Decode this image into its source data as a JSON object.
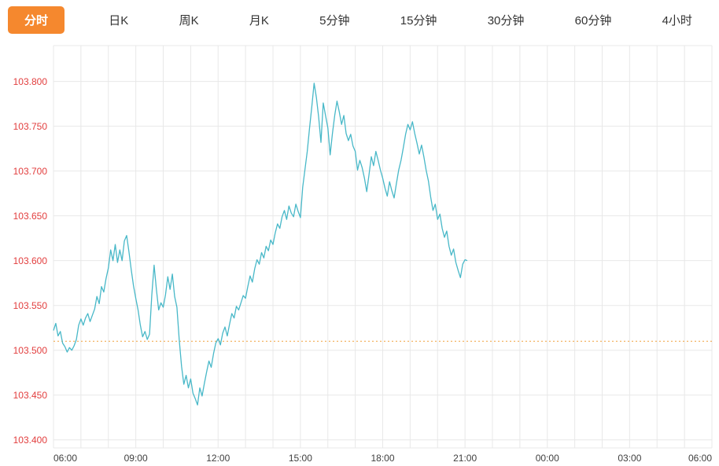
{
  "tabs": {
    "items": [
      {
        "label": "分时",
        "active": true
      },
      {
        "label": "日K",
        "active": false
      },
      {
        "label": "周K",
        "active": false
      },
      {
        "label": "月K",
        "active": false
      },
      {
        "label": "5分钟",
        "active": false
      },
      {
        "label": "15分钟",
        "active": false
      },
      {
        "label": "30分钟",
        "active": false
      },
      {
        "label": "60分钟",
        "active": false
      },
      {
        "label": "4小时",
        "active": false
      }
    ]
  },
  "colors": {
    "accent_orange": "#f5882e",
    "line_teal": "#48b8c8",
    "axis_label_red": "#e23e3e",
    "x_label": "#404040",
    "grid": "#e8e8e8",
    "ref_line_orange": "#f0a03c"
  },
  "chart_data": {
    "type": "line",
    "title": "",
    "xlabel": "",
    "ylabel": "",
    "legend": [],
    "grid": true,
    "x_tick_labels": [
      "06:00",
      "09:00",
      "12:00",
      "15:00",
      "18:00",
      "21:00",
      "00:00",
      "03:00",
      "06:00"
    ],
    "x_tick_minutes": [
      0,
      180,
      360,
      540,
      720,
      900,
      1080,
      1260,
      1440
    ],
    "x_range_minutes": [
      0,
      1440
    ],
    "x_grid_interval_minutes": 60,
    "y_ticks": [
      "103.400",
      "103.450",
      "103.500",
      "103.550",
      "103.600",
      "103.650",
      "103.700",
      "103.750",
      "103.800"
    ],
    "ylim": [
      103.391,
      103.84
    ],
    "reference_line": 103.51,
    "series": [
      {
        "name": "price",
        "points": [
          [
            0,
            103.522
          ],
          [
            5,
            103.53
          ],
          [
            10,
            103.516
          ],
          [
            15,
            103.521
          ],
          [
            20,
            103.508
          ],
          [
            25,
            103.504
          ],
          [
            30,
            103.498
          ],
          [
            35,
            103.503
          ],
          [
            40,
            103.5
          ],
          [
            45,
            103.505
          ],
          [
            50,
            103.512
          ],
          [
            55,
            103.528
          ],
          [
            60,
            103.535
          ],
          [
            65,
            103.528
          ],
          [
            70,
            103.536
          ],
          [
            75,
            103.541
          ],
          [
            80,
            103.532
          ],
          [
            85,
            103.539
          ],
          [
            90,
            103.546
          ],
          [
            95,
            103.56
          ],
          [
            100,
            103.552
          ],
          [
            105,
            103.571
          ],
          [
            110,
            103.565
          ],
          [
            115,
            103.58
          ],
          [
            120,
            103.592
          ],
          [
            125,
            103.612
          ],
          [
            130,
            103.6
          ],
          [
            135,
            103.618
          ],
          [
            140,
            103.598
          ],
          [
            145,
            103.612
          ],
          [
            150,
            103.6
          ],
          [
            155,
            103.622
          ],
          [
            160,
            103.628
          ],
          [
            165,
            103.61
          ],
          [
            170,
            103.59
          ],
          [
            175,
            103.572
          ],
          [
            180,
            103.558
          ],
          [
            185,
            103.545
          ],
          [
            190,
            103.528
          ],
          [
            195,
            103.515
          ],
          [
            200,
            103.521
          ],
          [
            205,
            103.512
          ],
          [
            210,
            103.518
          ],
          [
            215,
            103.562
          ],
          [
            220,
            103.595
          ],
          [
            225,
            103.568
          ],
          [
            230,
            103.545
          ],
          [
            235,
            103.553
          ],
          [
            240,
            103.548
          ],
          [
            245,
            103.562
          ],
          [
            250,
            103.582
          ],
          [
            255,
            103.568
          ],
          [
            260,
            103.585
          ],
          [
            265,
            103.56
          ],
          [
            270,
            103.548
          ],
          [
            275,
            103.512
          ],
          [
            280,
            103.482
          ],
          [
            285,
            103.462
          ],
          [
            290,
            103.472
          ],
          [
            295,
            103.458
          ],
          [
            300,
            103.468
          ],
          [
            305,
            103.452
          ],
          [
            310,
            103.446
          ],
          [
            315,
            103.439
          ],
          [
            320,
            103.458
          ],
          [
            325,
            103.449
          ],
          [
            330,
            103.463
          ],
          [
            335,
            103.476
          ],
          [
            340,
            103.488
          ],
          [
            345,
            103.481
          ],
          [
            350,
            103.496
          ],
          [
            355,
            103.508
          ],
          [
            360,
            103.513
          ],
          [
            365,
            103.506
          ],
          [
            370,
            103.519
          ],
          [
            375,
            103.526
          ],
          [
            380,
            103.516
          ],
          [
            385,
            103.529
          ],
          [
            390,
            103.541
          ],
          [
            395,
            103.536
          ],
          [
            400,
            103.549
          ],
          [
            405,
            103.545
          ],
          [
            410,
            103.553
          ],
          [
            415,
            103.561
          ],
          [
            420,
            103.558
          ],
          [
            425,
            103.571
          ],
          [
            430,
            103.583
          ],
          [
            435,
            103.576
          ],
          [
            440,
            103.591
          ],
          [
            445,
            103.601
          ],
          [
            450,
            103.596
          ],
          [
            455,
            103.609
          ],
          [
            460,
            103.603
          ],
          [
            465,
            103.616
          ],
          [
            470,
            103.611
          ],
          [
            475,
            103.623
          ],
          [
            480,
            103.618
          ],
          [
            485,
            103.631
          ],
          [
            490,
            103.641
          ],
          [
            495,
            103.636
          ],
          [
            500,
            103.649
          ],
          [
            505,
            103.656
          ],
          [
            510,
            103.646
          ],
          [
            515,
            103.661
          ],
          [
            520,
            103.653
          ],
          [
            525,
            103.649
          ],
          [
            530,
            103.663
          ],
          [
            535,
            103.655
          ],
          [
            540,
            103.648
          ],
          [
            545,
            103.682
          ],
          [
            550,
            103.702
          ],
          [
            555,
            103.722
          ],
          [
            560,
            103.748
          ],
          [
            565,
            103.772
          ],
          [
            570,
            103.798
          ],
          [
            575,
            103.782
          ],
          [
            580,
            103.76
          ],
          [
            585,
            103.732
          ],
          [
            590,
            103.776
          ],
          [
            595,
            103.762
          ],
          [
            600,
            103.748
          ],
          [
            605,
            103.718
          ],
          [
            610,
            103.742
          ],
          [
            615,
            103.762
          ],
          [
            620,
            103.778
          ],
          [
            625,
            103.766
          ],
          [
            630,
            103.752
          ],
          [
            635,
            103.762
          ],
          [
            640,
            103.742
          ],
          [
            645,
            103.734
          ],
          [
            650,
            103.741
          ],
          [
            655,
            103.728
          ],
          [
            660,
            103.722
          ],
          [
            665,
            103.701
          ],
          [
            670,
            103.712
          ],
          [
            675,
            103.704
          ],
          [
            680,
            103.692
          ],
          [
            685,
            103.677
          ],
          [
            690,
            103.696
          ],
          [
            695,
            103.716
          ],
          [
            700,
            103.706
          ],
          [
            705,
            103.722
          ],
          [
            710,
            103.712
          ],
          [
            715,
            103.701
          ],
          [
            720,
            103.692
          ],
          [
            725,
            103.681
          ],
          [
            730,
            103.672
          ],
          [
            735,
            103.688
          ],
          [
            740,
            103.678
          ],
          [
            745,
            103.67
          ],
          [
            750,
            103.686
          ],
          [
            755,
            103.701
          ],
          [
            760,
            103.712
          ],
          [
            765,
            103.726
          ],
          [
            770,
            103.741
          ],
          [
            775,
            103.752
          ],
          [
            780,
            103.746
          ],
          [
            785,
            103.755
          ],
          [
            790,
            103.742
          ],
          [
            795,
            103.731
          ],
          [
            800,
            103.719
          ],
          [
            805,
            103.729
          ],
          [
            810,
            103.716
          ],
          [
            815,
            103.701
          ],
          [
            820,
            103.689
          ],
          [
            825,
            103.671
          ],
          [
            830,
            103.656
          ],
          [
            835,
            103.663
          ],
          [
            840,
            103.646
          ],
          [
            845,
            103.652
          ],
          [
            850,
            103.636
          ],
          [
            855,
            103.626
          ],
          [
            860,
            103.633
          ],
          [
            865,
            103.616
          ],
          [
            870,
            103.606
          ],
          [
            875,
            103.613
          ],
          [
            880,
            103.598
          ],
          [
            885,
            103.589
          ],
          [
            890,
            103.581
          ],
          [
            895,
            103.596
          ],
          [
            900,
            103.601
          ],
          [
            905,
            103.6
          ]
        ]
      }
    ]
  }
}
